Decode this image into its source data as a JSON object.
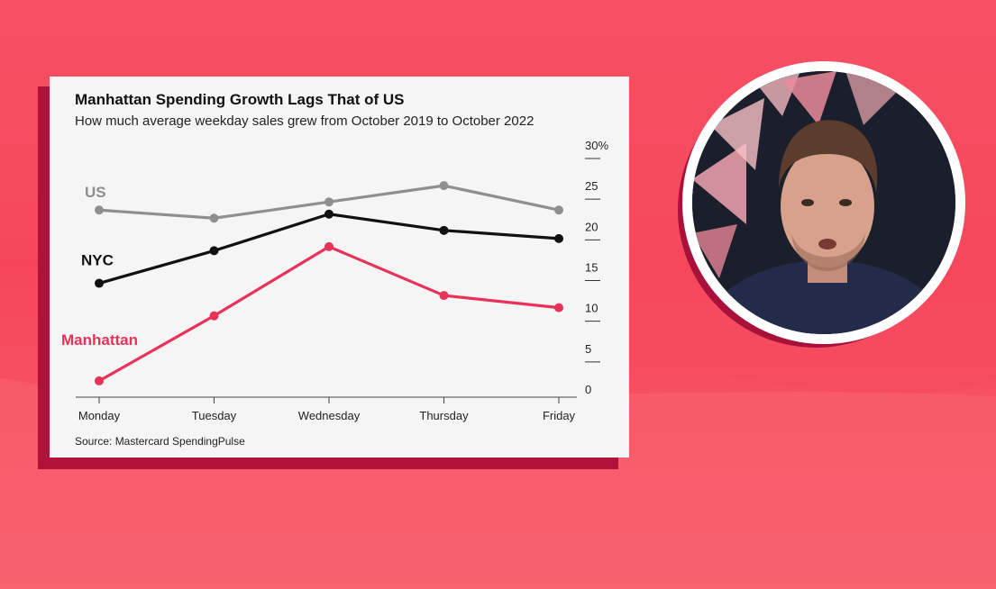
{
  "chart_data": {
    "type": "line",
    "title": "Manhattan Spending Growth Lags That of US",
    "subtitle": "How much average weekday sales grew from October 2019 to October 2022",
    "source": "Source: Mastercard SpendingPulse",
    "categories": [
      "Monday",
      "Tuesday",
      "Wednesday",
      "Thursday",
      "Friday"
    ],
    "ylim": [
      0,
      30
    ],
    "yticks": [
      "30%",
      "25",
      "20",
      "15",
      "10",
      "5",
      "0"
    ],
    "ytick_values": [
      30,
      25,
      20,
      15,
      10,
      5,
      0
    ],
    "y_axis_side": "right",
    "grid": false,
    "legend": "inline labels at left of lines",
    "series": [
      {
        "name": "US",
        "color": "#8f8f8f",
        "values": [
          23,
          22,
          24,
          26,
          23
        ]
      },
      {
        "name": "NYC",
        "color": "#111111",
        "values": [
          14,
          18,
          22.5,
          20.5,
          19.5
        ]
      },
      {
        "name": "Manhattan",
        "color": "#e8325a",
        "values": [
          2,
          10,
          18.5,
          12.5,
          11
        ]
      }
    ]
  },
  "colors": {
    "background": "#f6455a",
    "card": "#f5f5f5",
    "card_shadow": "#b0123a"
  },
  "photo": {
    "icon": "presenter-photo"
  }
}
